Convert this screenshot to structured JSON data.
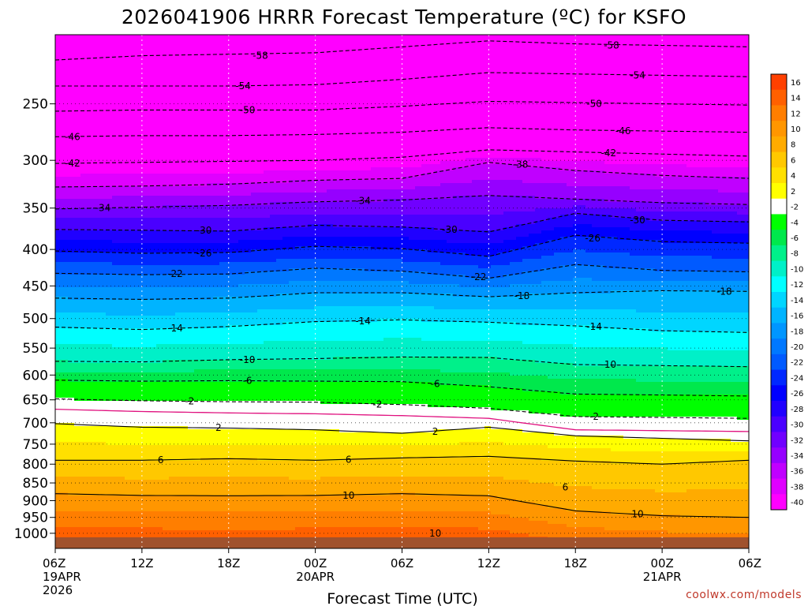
{
  "chart_data": {
    "type": "heatmap",
    "title": "2026041906 HRRR Forecast Temperature (ºC) for KSFO",
    "xlabel": "Forecast Time (UTC)",
    "ylabel": "",
    "credit": "coolwx.com/models",
    "y_axis": {
      "scale": "log",
      "reversed": true,
      "range": [
        1050,
        200
      ],
      "ticks": [
        250,
        300,
        350,
        400,
        450,
        500,
        550,
        600,
        650,
        700,
        750,
        800,
        850,
        900,
        950,
        1000
      ]
    },
    "x_axis": {
      "range_hours": [
        0,
        48
      ],
      "ticks": [
        {
          "hour": 0,
          "label": "06Z",
          "date": "19APR",
          "year": "2026"
        },
        {
          "hour": 6,
          "label": "12Z"
        },
        {
          "hour": 12,
          "label": "18Z"
        },
        {
          "hour": 18,
          "label": "00Z",
          "date": "20APR"
        },
        {
          "hour": 24,
          "label": "06Z"
        },
        {
          "hour": 30,
          "label": "12Z"
        },
        {
          "hour": 36,
          "label": "18Z"
        },
        {
          "hour": 42,
          "label": "00Z",
          "date": "21APR"
        },
        {
          "hour": 48,
          "label": "06Z"
        }
      ]
    },
    "grid": true,
    "colorbar": {
      "placement": "right",
      "labels": [
        16,
        14,
        12,
        10,
        8,
        6,
        4,
        2,
        -2,
        -4,
        -6,
        -8,
        -10,
        -12,
        -14,
        -16,
        -18,
        -20,
        -22,
        -24,
        -26,
        -28,
        -30,
        -32,
        -34,
        -36,
        -38,
        -40
      ],
      "colors": [
        "#ff4000",
        "#ff6000",
        "#ff7e00",
        "#ff9600",
        "#ffab00",
        "#ffc800",
        "#ffe000",
        "#ffff00",
        "#ffffff",
        "#00ff00",
        "#00e84c",
        "#00f08a",
        "#00f0c8",
        "#00ffff",
        "#00d6ff",
        "#00b4ff",
        "#0096ff",
        "#0078ff",
        "#005aff",
        "#0028ff",
        "#0000ff",
        "#2000ff",
        "#4a00ff",
        "#7000ff",
        "#9600ff",
        "#c000ff",
        "#e000ff",
        "#ff00ff"
      ]
    },
    "ground_color": "#a0522d",
    "isotherms": [
      {
        "value": -58,
        "points": [
          [
            0,
            217
          ],
          [
            6,
            214
          ],
          [
            12,
            213
          ],
          [
            18,
            212
          ],
          [
            24,
            208
          ],
          [
            30,
            204
          ],
          [
            36,
            206
          ],
          [
            42,
            207
          ],
          [
            48,
            208
          ]
        ]
      },
      {
        "value": -54,
        "points": [
          [
            0,
            236
          ],
          [
            6,
            236
          ],
          [
            12,
            236
          ],
          [
            18,
            235
          ],
          [
            24,
            231
          ],
          [
            30,
            226
          ],
          [
            36,
            227
          ],
          [
            42,
            228
          ],
          [
            48,
            229
          ]
        ]
      },
      {
        "value": -50,
        "points": [
          [
            0,
            256
          ],
          [
            6,
            255
          ],
          [
            12,
            255
          ],
          [
            18,
            255
          ],
          [
            24,
            252
          ],
          [
            30,
            248
          ],
          [
            36,
            249
          ],
          [
            42,
            250
          ],
          [
            48,
            251
          ]
        ]
      },
      {
        "value": -46,
        "points": [
          [
            0,
            278
          ],
          [
            6,
            277
          ],
          [
            12,
            277
          ],
          [
            18,
            276
          ],
          [
            24,
            274
          ],
          [
            30,
            270
          ],
          [
            36,
            272
          ],
          [
            42,
            273
          ],
          [
            48,
            274
          ]
        ]
      },
      {
        "value": -42,
        "points": [
          [
            0,
            303
          ],
          [
            6,
            302
          ],
          [
            12,
            301
          ],
          [
            18,
            300
          ],
          [
            24,
            297
          ],
          [
            30,
            290
          ],
          [
            36,
            292
          ],
          [
            42,
            294
          ],
          [
            48,
            296
          ]
        ]
      },
      {
        "value": -38,
        "points": [
          [
            0,
            327
          ],
          [
            6,
            326
          ],
          [
            12,
            324
          ],
          [
            18,
            320
          ],
          [
            24,
            318
          ],
          [
            30,
            302
          ],
          [
            36,
            310
          ],
          [
            42,
            315
          ],
          [
            48,
            318
          ]
        ]
      },
      {
        "value": -34,
        "points": [
          [
            0,
            351
          ],
          [
            6,
            349
          ],
          [
            12,
            347
          ],
          [
            18,
            343
          ],
          [
            24,
            341
          ],
          [
            30,
            336
          ],
          [
            36,
            340
          ],
          [
            42,
            344
          ],
          [
            48,
            346
          ]
        ]
      },
      {
        "value": -30,
        "points": [
          [
            0,
            375
          ],
          [
            6,
            376
          ],
          [
            12,
            377
          ],
          [
            18,
            370
          ],
          [
            24,
            372
          ],
          [
            30,
            378
          ],
          [
            36,
            356
          ],
          [
            42,
            364
          ],
          [
            48,
            366
          ]
        ]
      },
      {
        "value": -26,
        "points": [
          [
            0,
            402
          ],
          [
            6,
            405
          ],
          [
            12,
            404
          ],
          [
            18,
            396
          ],
          [
            24,
            399
          ],
          [
            30,
            409
          ],
          [
            36,
            382
          ],
          [
            42,
            390
          ],
          [
            48,
            392
          ]
        ]
      },
      {
        "value": -22,
        "points": [
          [
            0,
            432
          ],
          [
            6,
            434
          ],
          [
            12,
            433
          ],
          [
            18,
            425
          ],
          [
            24,
            429
          ],
          [
            30,
            439
          ],
          [
            36,
            420
          ],
          [
            42,
            428
          ],
          [
            48,
            430
          ]
        ]
      },
      {
        "value": -18,
        "points": [
          [
            0,
            468
          ],
          [
            6,
            470
          ],
          [
            12,
            468
          ],
          [
            18,
            460
          ],
          [
            24,
            460
          ],
          [
            30,
            466
          ],
          [
            36,
            460
          ],
          [
            42,
            457
          ],
          [
            48,
            458
          ]
        ]
      },
      {
        "value": -14,
        "points": [
          [
            0,
            514
          ],
          [
            6,
            518
          ],
          [
            12,
            513
          ],
          [
            18,
            505
          ],
          [
            24,
            502
          ],
          [
            30,
            506
          ],
          [
            36,
            512
          ],
          [
            42,
            520
          ],
          [
            48,
            523
          ]
        ]
      },
      {
        "value": -10,
        "points": [
          [
            0,
            574
          ],
          [
            6,
            575
          ],
          [
            12,
            571
          ],
          [
            18,
            569
          ],
          [
            24,
            566
          ],
          [
            30,
            567
          ],
          [
            36,
            580
          ],
          [
            42,
            582
          ],
          [
            48,
            584
          ]
        ]
      },
      {
        "value": -6,
        "points": [
          [
            0,
            610
          ],
          [
            6,
            612
          ],
          [
            12,
            611
          ],
          [
            18,
            612
          ],
          [
            24,
            613
          ],
          [
            30,
            623
          ],
          [
            36,
            638
          ],
          [
            42,
            640
          ],
          [
            48,
            642
          ]
        ]
      },
      {
        "value": -2,
        "points": [
          [
            0,
            648
          ],
          [
            6,
            652
          ],
          [
            12,
            654
          ],
          [
            18,
            655
          ],
          [
            24,
            660
          ],
          [
            30,
            668
          ],
          [
            36,
            686
          ],
          [
            42,
            688
          ],
          [
            48,
            690
          ]
        ]
      },
      {
        "value": 0,
        "points": [
          [
            0,
            670
          ],
          [
            6,
            675
          ],
          [
            12,
            678
          ],
          [
            18,
            680
          ],
          [
            24,
            684
          ],
          [
            30,
            690
          ],
          [
            36,
            716
          ],
          [
            42,
            718
          ],
          [
            48,
            720
          ]
        ]
      },
      {
        "value": 2,
        "points": [
          [
            0,
            702
          ],
          [
            6,
            710
          ],
          [
            12,
            712
          ],
          [
            18,
            716
          ],
          [
            24,
            724
          ],
          [
            30,
            710
          ],
          [
            36,
            730
          ],
          [
            42,
            736
          ],
          [
            48,
            742
          ]
        ]
      },
      {
        "value": 6,
        "points": [
          [
            0,
            790
          ],
          [
            6,
            790
          ],
          [
            12,
            786
          ],
          [
            18,
            790
          ],
          [
            24,
            784
          ],
          [
            30,
            780
          ],
          [
            36,
            792
          ],
          [
            42,
            800
          ],
          [
            48,
            790
          ]
        ]
      },
      {
        "value": 10,
        "points": [
          [
            0,
            880
          ],
          [
            6,
            885
          ],
          [
            12,
            886
          ],
          [
            18,
            885
          ],
          [
            24,
            880
          ],
          [
            30,
            886
          ],
          [
            36,
            930
          ],
          [
            42,
            945
          ],
          [
            48,
            950
          ]
        ]
      }
    ],
    "isotherm_labels": [
      {
        "value": -58,
        "hour": 14.2,
        "p": 214
      },
      {
        "value": -58,
        "hour": 38.5,
        "p": 207
      },
      {
        "value": -54,
        "hour": 13,
        "p": 236
      },
      {
        "value": -54,
        "hour": 40.3,
        "p": 228
      },
      {
        "value": -50,
        "hour": 13.3,
        "p": 255
      },
      {
        "value": -50,
        "hour": 37.3,
        "p": 250
      },
      {
        "value": -46,
        "hour": 1.2,
        "p": 278
      },
      {
        "value": -46,
        "hour": 39.3,
        "p": 273
      },
      {
        "value": -42,
        "hour": 1.2,
        "p": 303
      },
      {
        "value": -42,
        "hour": 38.3,
        "p": 293
      },
      {
        "value": -38,
        "hour": 32.2,
        "p": 304
      },
      {
        "value": -34,
        "hour": 3.3,
        "p": 350
      },
      {
        "value": -34,
        "hour": 21.3,
        "p": 342
      },
      {
        "value": -30,
        "hour": 10.3,
        "p": 376
      },
      {
        "value": -30,
        "hour": 27.3,
        "p": 375
      },
      {
        "value": -30,
        "hour": 40.3,
        "p": 364
      },
      {
        "value": -26,
        "hour": 10.3,
        "p": 405
      },
      {
        "value": -26,
        "hour": 37.2,
        "p": 386
      },
      {
        "value": -22,
        "hour": 8.3,
        "p": 433
      },
      {
        "value": -22,
        "hour": 29.3,
        "p": 437
      },
      {
        "value": -18,
        "hour": 32.3,
        "p": 465
      },
      {
        "value": -18,
        "hour": 46.3,
        "p": 458
      },
      {
        "value": -14,
        "hour": 8.3,
        "p": 516
      },
      {
        "value": -14,
        "hour": 21.3,
        "p": 504
      },
      {
        "value": -14,
        "hour": 37.3,
        "p": 513
      },
      {
        "value": -10,
        "hour": 13.3,
        "p": 571
      },
      {
        "value": -10,
        "hour": 38.3,
        "p": 580
      },
      {
        "value": -6,
        "hour": 13.3,
        "p": 611
      },
      {
        "value": -6,
        "hour": 26.3,
        "p": 617
      },
      {
        "value": -2,
        "hour": 9.3,
        "p": 653
      },
      {
        "value": -2,
        "hour": 22.3,
        "p": 660
      },
      {
        "value": -2,
        "hour": 37.3,
        "p": 686
      },
      {
        "value": 2,
        "hour": 11.3,
        "p": 711
      },
      {
        "value": 2,
        "hour": 26.3,
        "p": 720
      },
      {
        "value": 6,
        "hour": 7.3,
        "p": 789
      },
      {
        "value": 6,
        "hour": 20.3,
        "p": 788
      },
      {
        "value": 6,
        "hour": 35.3,
        "p": 862
      },
      {
        "value": 10,
        "hour": 20.3,
        "p": 885
      },
      {
        "value": 10,
        "hour": 26.3,
        "p": 1000
      },
      {
        "value": 10,
        "hour": 40.3,
        "p": 940
      }
    ]
  }
}
